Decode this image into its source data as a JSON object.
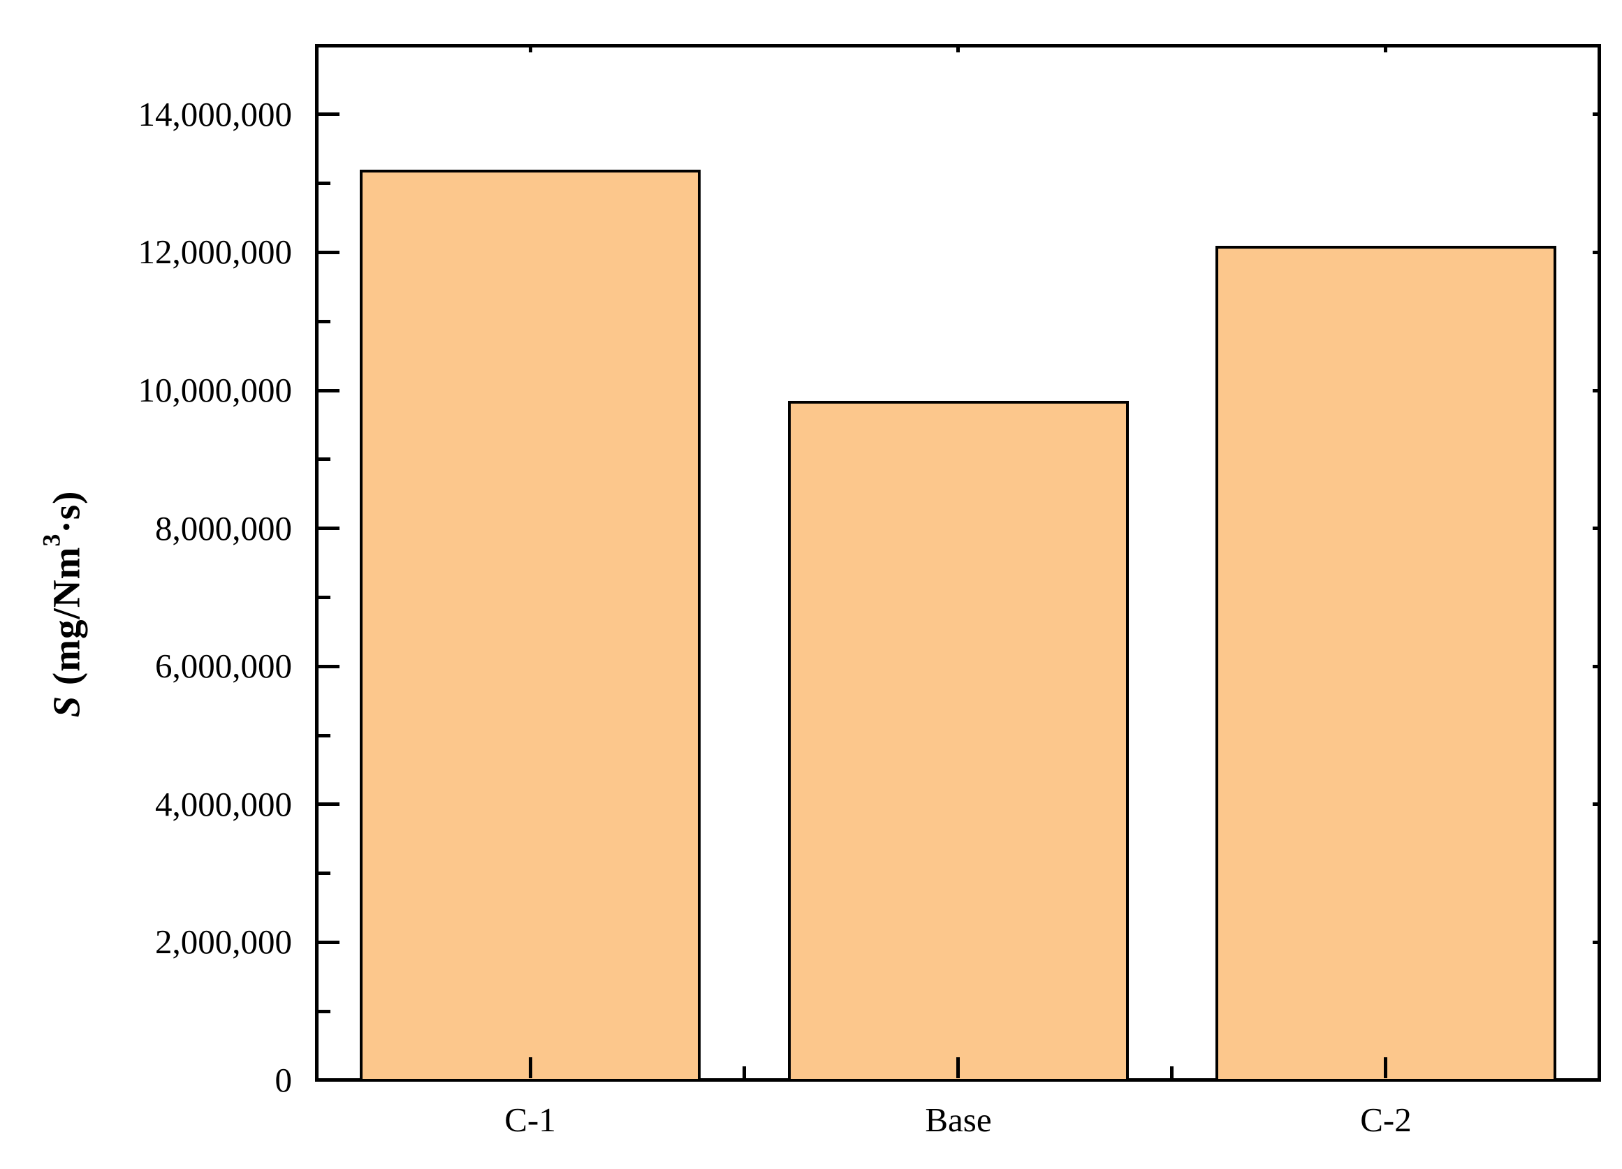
{
  "chart_data": {
    "type": "bar",
    "title": "",
    "categories": [
      "C-1",
      "Base",
      "C-2"
    ],
    "values": [
      13200000,
      9850000,
      12100000
    ],
    "series_name": "S",
    "xlabel": "",
    "ylabel": {
      "var": "S",
      "pre_sup": " (mg/Nm",
      "sup": "3",
      "post_sup": "·s)"
    },
    "ylim": [
      0,
      15000000
    ],
    "ytick_major_step": 2000000,
    "ytick_minor_step": 1000000,
    "yticks": [
      {
        "value": 0,
        "label": "0"
      },
      {
        "value": 2000000,
        "label": "2,000,000"
      },
      {
        "value": 4000000,
        "label": "4,000,000"
      },
      {
        "value": 6000000,
        "label": "6,000,000"
      },
      {
        "value": 8000000,
        "label": "8,000,000"
      },
      {
        "value": 10000000,
        "label": "10,000,000"
      },
      {
        "value": 12000000,
        "label": "12,000,000"
      },
      {
        "value": 14000000,
        "label": "14,000,000"
      }
    ],
    "grid": false,
    "legend": "none",
    "colors": {
      "bar_fill": "#FCC78C",
      "bar_border": "#000000",
      "axis": "#000000",
      "background": "#FFFFFF"
    }
  }
}
